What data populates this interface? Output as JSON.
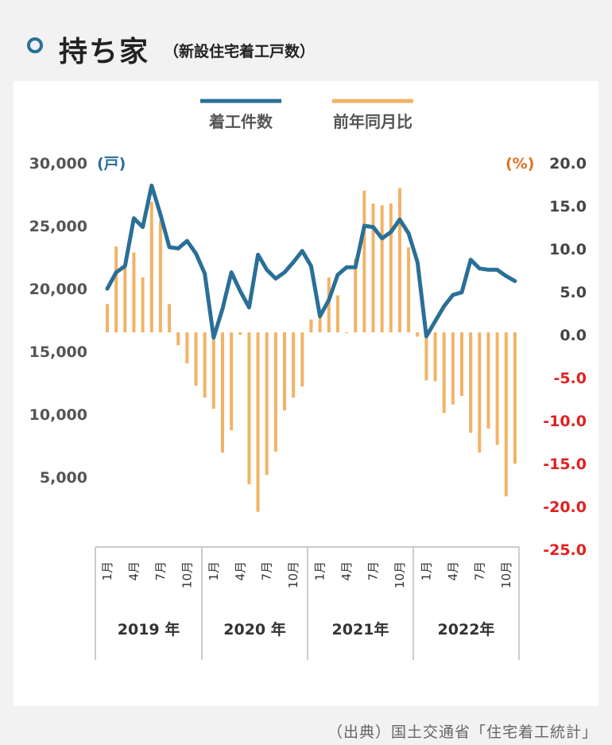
{
  "header": {
    "title": "持ち家",
    "subtitle": "（新設住宅着工戸数）"
  },
  "source": "（出典）国土交通省「住宅着工統計」",
  "colors": {
    "line": "#2a6f97",
    "bar": "#f2b366",
    "negative_label": "#e02020",
    "left_unit": "#2a6f97",
    "right_unit": "#e07020",
    "axis_text": "#444444"
  },
  "chart_data": {
    "type": "bar+line",
    "legend": [
      "着工件数",
      "前年同月比"
    ],
    "legend_position": "top-center",
    "left_axis": {
      "unit": "(戸)",
      "ylim": [
        0,
        30000
      ],
      "tick_labels": [
        "30,000",
        "25,000",
        "20,000",
        "15,000",
        "10,000",
        "5,000"
      ]
    },
    "right_axis": {
      "unit": "(%)",
      "ylim": [
        -25,
        20
      ],
      "tick_labels": [
        "20.0",
        "15.0",
        "10.0",
        "5.0",
        "0.0",
        "-5.0",
        "-10.0",
        "-15.0",
        "-20.0",
        "-25.0"
      ]
    },
    "x_month_labels": [
      "1月",
      "4月",
      "7月",
      "10月",
      "1月",
      "4月",
      "7月",
      "10月",
      "1月",
      "4月",
      "7月",
      "10月",
      "1月",
      "4月",
      "7月",
      "10月"
    ],
    "year_labels": [
      "2019 年",
      "2020 年",
      "2021年",
      "2022年"
    ],
    "series": [
      {
        "name": "着工件数",
        "type": "line",
        "axis": "left",
        "values": [
          20000,
          21300,
          21800,
          25600,
          24900,
          28200,
          25900,
          23300,
          23200,
          23800,
          22800,
          21200,
          16100,
          18400,
          21300,
          19800,
          18500,
          22700,
          21500,
          20800,
          21300,
          22100,
          23000,
          21800,
          17800,
          19100,
          21100,
          21700,
          21700,
          25000,
          24900,
          24000,
          24500,
          25500,
          24400,
          22100,
          16200,
          17400,
          18600,
          19500,
          19700,
          22300,
          21600,
          21500,
          21500,
          21000,
          20600
        ]
      },
      {
        "name": "前年同月比",
        "type": "bar",
        "axis": "right",
        "values": [
          3.3,
          10.0,
          7.5,
          9.3,
          6.4,
          15.2,
          13.0,
          3.3,
          -1.5,
          -3.6,
          -6.2,
          -7.6,
          -8.9,
          -14.0,
          -11.4,
          -0.3,
          -17.7,
          -20.9,
          -16.6,
          -13.9,
          -9.1,
          -7.6,
          -6.3,
          1.5,
          2.3,
          6.4,
          4.3,
          -0.1,
          8.6,
          16.5,
          15.0,
          14.8,
          15.0,
          16.8,
          9.9,
          -0.5,
          -5.6,
          -5.7,
          -9.4,
          -8.4,
          -7.4,
          -11.7,
          -14.0,
          -11.2,
          -13.1,
          -19.1,
          -15.3
        ]
      }
    ]
  }
}
